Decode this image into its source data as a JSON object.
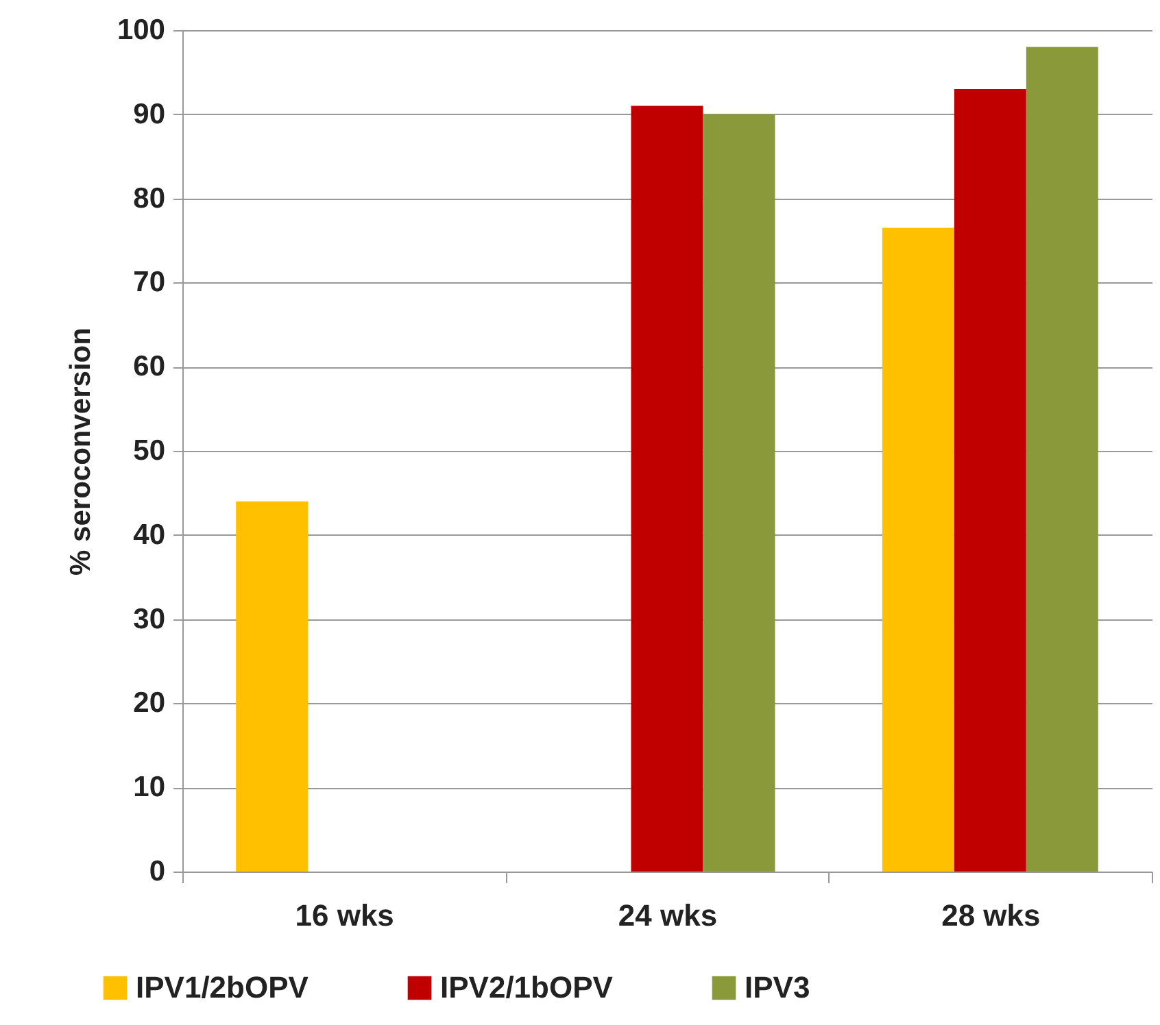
{
  "chart_data": {
    "type": "bar",
    "ylabel": "% seroconversion",
    "categories": [
      "16 wks",
      "24 wks",
      "28 wks"
    ],
    "series": [
      {
        "name": "IPV1/2bOPV",
        "color": "#ffc000",
        "values": [
          44,
          null,
          76.5
        ]
      },
      {
        "name": "IPV2/1bOPV",
        "color": "#c00000",
        "values": [
          null,
          91,
          93
        ]
      },
      {
        "name": "IPV3",
        "color": "#8a9a3b",
        "values": [
          null,
          90,
          98
        ]
      }
    ],
    "ylim": [
      0,
      100
    ],
    "yticks": [
      0,
      10,
      20,
      30,
      40,
      50,
      60,
      70,
      80,
      90,
      100
    ],
    "grid": "y",
    "legend": "bottom"
  }
}
